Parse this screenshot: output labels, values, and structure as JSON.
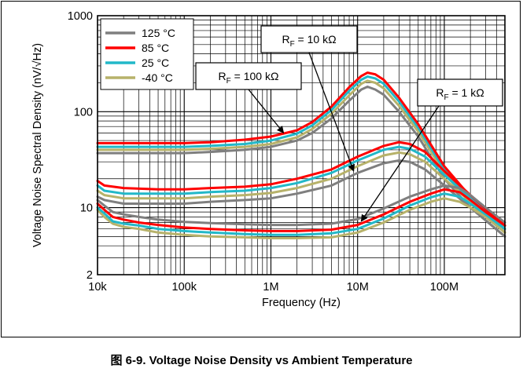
{
  "caption": "图 6-9. Voltage Noise Density vs Ambient Temperature",
  "chart_data": {
    "type": "line",
    "title": "",
    "xlabel": "Frequency (Hz)",
    "ylabel": "Voltage Noise Spectral Density (nV/√Hz)",
    "xscale": "log",
    "yscale": "log",
    "xlim": [
      10000,
      500000000
    ],
    "ylim": [
      2,
      1000
    ],
    "x_ticks": [
      {
        "value": 10000,
        "label": "10k"
      },
      {
        "value": 100000,
        "label": "100k"
      },
      {
        "value": 1000000,
        "label": "1M"
      },
      {
        "value": 10000000,
        "label": "10M"
      },
      {
        "value": 100000000,
        "label": "100M"
      }
    ],
    "y_ticks": [
      {
        "value": 2,
        "label": "2"
      },
      {
        "value": 10,
        "label": "10"
      },
      {
        "value": 100,
        "label": "100"
      },
      {
        "value": 1000,
        "label": "1000"
      }
    ],
    "grid": true,
    "legend_position": "top-left",
    "legend": [
      {
        "label": "125 °C",
        "color": "#7f7f7f"
      },
      {
        "label": "85 °C",
        "color": "#ff0000"
      },
      {
        "label": "25 °C",
        "color": "#22b8c8"
      },
      {
        "label": "-40 °C",
        "color": "#b7b26a"
      }
    ],
    "annotations": [
      {
        "sub": "F",
        "value": "= 10 kΩ",
        "points_to": {
          "x": 9000000,
          "y": 24
        }
      },
      {
        "sub": "F",
        "value": "= 100 kΩ",
        "points_to": {
          "x": 1400000,
          "y": 60
        }
      },
      {
        "sub": "F",
        "value": "= 1 kΩ",
        "points_to": {
          "x": 11000000,
          "y": 7.2
        }
      }
    ],
    "series": [
      {
        "group": "100 kΩ",
        "color": "#7f7f7f",
        "x": [
          10000,
          20000,
          50000,
          100000,
          200000,
          500000,
          1000000,
          2000000,
          3000000,
          5000000,
          8000000,
          11000000,
          13000000,
          16000000,
          20000000,
          30000000,
          50000000,
          100000000,
          200000000,
          500000000
        ],
        "y": [
          37,
          37,
          37,
          37,
          38,
          40,
          43,
          50,
          60,
          85,
          130,
          170,
          182,
          170,
          150,
          100,
          55,
          20,
          10,
          5
        ]
      },
      {
        "group": "100 kΩ",
        "color": "#b7b26a",
        "x": [
          10000,
          20000,
          50000,
          100000,
          200000,
          500000,
          1000000,
          2000000,
          3000000,
          5000000,
          8000000,
          11000000,
          13000000,
          16000000,
          20000000,
          30000000,
          50000000,
          100000000,
          200000000,
          500000000
        ],
        "y": [
          40,
          40,
          40,
          40,
          41,
          43,
          46,
          54,
          66,
          95,
          148,
          195,
          210,
          200,
          175,
          115,
          62,
          23,
          11,
          5.5
        ]
      },
      {
        "group": "100 kΩ",
        "color": "#22b8c8",
        "x": [
          10000,
          20000,
          50000,
          100000,
          200000,
          500000,
          1000000,
          2000000,
          3000000,
          5000000,
          8000000,
          11000000,
          13000000,
          16000000,
          20000000,
          30000000,
          50000000,
          100000000,
          200000000,
          500000000
        ],
        "y": [
          43,
          43,
          43,
          43,
          44,
          46,
          50,
          59,
          72,
          104,
          165,
          215,
          232,
          222,
          195,
          128,
          68,
          25,
          12,
          6
        ]
      },
      {
        "group": "100 kΩ",
        "color": "#ff0000",
        "x": [
          10000,
          20000,
          50000,
          100000,
          200000,
          500000,
          1000000,
          2000000,
          3000000,
          5000000,
          8000000,
          11000000,
          13000000,
          16000000,
          20000000,
          30000000,
          50000000,
          100000000,
          200000000,
          500000000
        ],
        "y": [
          47,
          47,
          47,
          47,
          48,
          51,
          55,
          64,
          78,
          113,
          180,
          235,
          255,
          245,
          215,
          140,
          74,
          27,
          13,
          6.5
        ]
      },
      {
        "group": "10 kΩ",
        "color": "#7f7f7f",
        "x": [
          10000,
          12000,
          20000,
          50000,
          100000,
          200000,
          500000,
          1000000,
          2000000,
          5000000,
          10000000,
          20000000,
          30000000,
          40000000,
          60000000,
          100000000,
          200000000,
          500000000
        ],
        "y": [
          13,
          12,
          11,
          11,
          11,
          11.5,
          12,
          12.5,
          14,
          17,
          23,
          29,
          31,
          30,
          25,
          17,
          10,
          5
        ]
      },
      {
        "group": "10 kΩ",
        "color": "#b7b26a",
        "x": [
          10000,
          12000,
          20000,
          50000,
          100000,
          200000,
          500000,
          1000000,
          2000000,
          5000000,
          10000000,
          20000000,
          30000000,
          40000000,
          60000000,
          100000000,
          200000000,
          500000000
        ],
        "y": [
          15,
          13.5,
          12.5,
          12.5,
          12.5,
          13,
          13.5,
          14.2,
          16,
          20,
          27,
          35,
          37.5,
          36,
          30,
          20,
          11.5,
          5.5
        ]
      },
      {
        "group": "10 kΩ",
        "color": "#22b8c8",
        "x": [
          10000,
          12000,
          20000,
          50000,
          100000,
          200000,
          500000,
          1000000,
          2000000,
          5000000,
          10000000,
          20000000,
          30000000,
          40000000,
          60000000,
          100000000,
          200000000,
          500000000
        ],
        "y": [
          17,
          15,
          14,
          14,
          14,
          14.5,
          15,
          16,
          18,
          23,
          31,
          40,
          43,
          41,
          34,
          22,
          12.5,
          6
        ]
      },
      {
        "group": "10 kΩ",
        "color": "#ff0000",
        "x": [
          10000,
          12000,
          20000,
          50000,
          100000,
          200000,
          500000,
          1000000,
          2000000,
          5000000,
          10000000,
          20000000,
          30000000,
          40000000,
          60000000,
          100000000,
          200000000,
          500000000
        ],
        "y": [
          19,
          17,
          16,
          15.5,
          15.5,
          16,
          16.5,
          17.5,
          20,
          25,
          34,
          44,
          48,
          46,
          38,
          24,
          13.5,
          6.5
        ]
      },
      {
        "group": "1 kΩ",
        "color": "#b7b26a",
        "x": [
          10000,
          12000,
          15000,
          20000,
          30000,
          50000,
          100000,
          200000,
          500000,
          1000000,
          2000000,
          5000000,
          10000000,
          20000000,
          40000000,
          70000000,
          100000000,
          150000000,
          200000000,
          300000000,
          500000000
        ],
        "y": [
          9.5,
          8,
          6.8,
          6.3,
          6,
          5.5,
          5.2,
          5,
          4.9,
          4.8,
          4.8,
          4.9,
          5.5,
          7,
          9.5,
          11.5,
          12.5,
          11.5,
          10,
          8,
          5.5
        ]
      },
      {
        "group": "1 kΩ",
        "color": "#22b8c8",
        "x": [
          10000,
          12000,
          15000,
          20000,
          30000,
          50000,
          100000,
          200000,
          500000,
          1000000,
          2000000,
          5000000,
          10000000,
          20000000,
          40000000,
          70000000,
          100000000,
          150000000,
          200000000,
          300000000,
          500000000
        ],
        "y": [
          10,
          8.7,
          7.2,
          6.8,
          6.5,
          6,
          5.7,
          5.5,
          5.3,
          5.2,
          5.2,
          5.4,
          6,
          7.7,
          10.5,
          12.8,
          14,
          13,
          11,
          8.5,
          6
        ]
      },
      {
        "group": "1 kΩ",
        "color": "#ff0000",
        "x": [
          10000,
          12000,
          15000,
          20000,
          30000,
          50000,
          100000,
          200000,
          500000,
          1000000,
          2000000,
          5000000,
          10000000,
          20000000,
          40000000,
          70000000,
          100000000,
          150000000,
          200000000,
          300000000,
          500000000
        ],
        "y": [
          11,
          9.5,
          8,
          7.5,
          7,
          6.6,
          6.2,
          6,
          5.8,
          5.7,
          5.7,
          5.9,
          6.6,
          8.5,
          11.5,
          14,
          15.5,
          14.5,
          12,
          9,
          6.5
        ]
      },
      {
        "group": "1 kΩ",
        "color": "#7f7f7f",
        "x": [
          10000,
          12000,
          15000,
          20000,
          30000,
          50000,
          100000,
          200000,
          500000,
          1000000,
          2000000,
          5000000,
          10000000,
          20000000,
          40000000,
          70000000,
          100000000,
          150000000,
          200000000,
          300000000,
          500000000
        ],
        "y": [
          12,
          10.5,
          9,
          8.5,
          8,
          7.5,
          7.1,
          6.9,
          6.7,
          6.6,
          6.6,
          6.8,
          7.6,
          9.8,
          13,
          15.5,
          17,
          16,
          13.5,
          10,
          7
        ]
      }
    ]
  }
}
